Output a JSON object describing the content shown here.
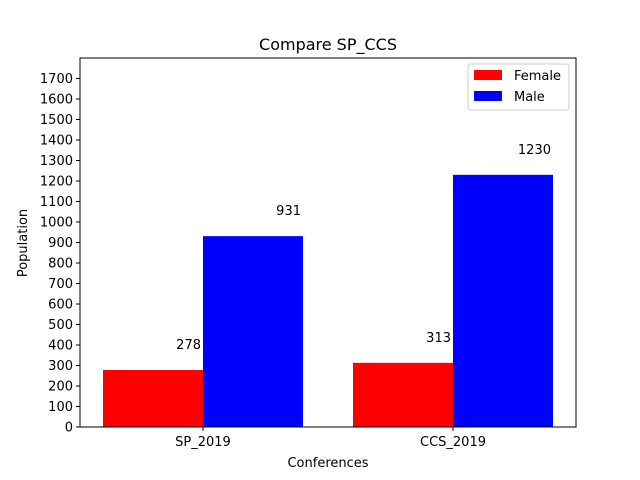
{
  "chart_data": {
    "type": "bar",
    "title": "Compare SP_CCS",
    "xlabel": "Conferences",
    "ylabel": "Population",
    "categories": [
      "SP_2019",
      "CCS_2019"
    ],
    "series": [
      {
        "name": "Female",
        "values": [
          278,
          313
        ],
        "color": "#ff0000"
      },
      {
        "name": "Male",
        "values": [
          931,
          1230
        ],
        "color": "#0000ff"
      }
    ],
    "ylim": [
      0,
      1800
    ],
    "yticks": [
      0,
      100,
      200,
      300,
      400,
      500,
      600,
      700,
      800,
      900,
      1000,
      1100,
      1200,
      1300,
      1400,
      1500,
      1600,
      1700
    ],
    "data_labels": true,
    "grid": false,
    "legend_position": "top-right"
  }
}
